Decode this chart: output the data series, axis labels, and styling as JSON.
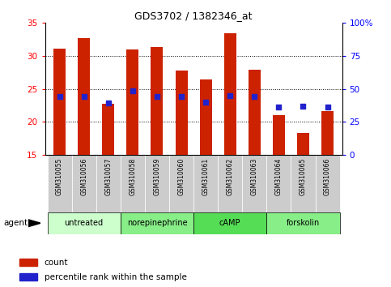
{
  "title": "GDS3702 / 1382346_at",
  "samples": [
    "GSM310055",
    "GSM310056",
    "GSM310057",
    "GSM310058",
    "GSM310059",
    "GSM310060",
    "GSM310061",
    "GSM310062",
    "GSM310063",
    "GSM310064",
    "GSM310065",
    "GSM310066"
  ],
  "count_values": [
    31.1,
    32.7,
    22.8,
    31.0,
    31.3,
    27.8,
    26.5,
    33.4,
    27.9,
    21.0,
    18.3,
    21.7
  ],
  "percentile_values": [
    23.9,
    23.9,
    22.9,
    24.7,
    23.9,
    23.9,
    23.0,
    24.0,
    23.9,
    22.3,
    22.4,
    22.3
  ],
  "ymin": 15,
  "ymax": 35,
  "yticks_left": [
    15,
    20,
    25,
    30,
    35
  ],
  "right_yticks": [
    0,
    25,
    50,
    75,
    100
  ],
  "groups": [
    {
      "label": "untreated",
      "start": 0,
      "end": 3,
      "color": "#ccffcc"
    },
    {
      "label": "norepinephrine",
      "start": 3,
      "end": 6,
      "color": "#88ee88"
    },
    {
      "label": "cAMP",
      "start": 6,
      "end": 9,
      "color": "#55dd55"
    },
    {
      "label": "forskolin",
      "start": 9,
      "end": 12,
      "color": "#88ee88"
    }
  ],
  "bar_color": "#cc2200",
  "percentile_color": "#2222cc",
  "background_color": "#ffffff",
  "tick_label_bg": "#cccccc",
  "bar_width": 0.5,
  "agent_label": "agent",
  "legend_count": "count",
  "legend_percentile": "percentile rank within the sample"
}
